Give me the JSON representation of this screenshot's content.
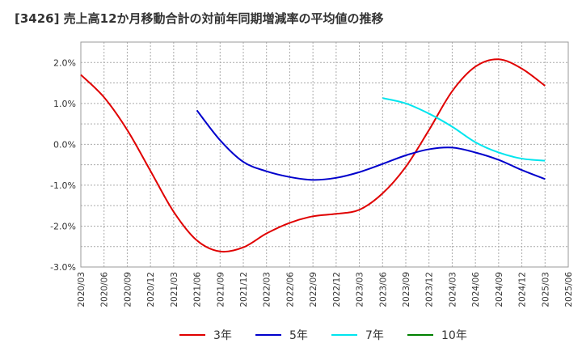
{
  "chart_data": {
    "type": "line",
    "title": "[3426]  売上高12か月移動合計の対前年同期増減率の平均値の推移",
    "xlabel": "",
    "ylabel": "",
    "ylim": [
      -0.03,
      0.025
    ],
    "y_ticks": [
      {
        "value": 0.02,
        "label": "2.0%"
      },
      {
        "value": 0.01,
        "label": "1.0%"
      },
      {
        "value": 0.0,
        "label": "0.0%"
      },
      {
        "value": -0.01,
        "label": "-1.0%"
      },
      {
        "value": -0.02,
        "label": "-2.0%"
      },
      {
        "value": -0.03,
        "label": "-3.0%"
      }
    ],
    "x_ticks": [
      "2020/03",
      "2020/06",
      "2020/09",
      "2020/12",
      "2021/03",
      "2021/06",
      "2021/09",
      "2021/12",
      "2022/03",
      "2022/06",
      "2022/09",
      "2022/12",
      "2023/03",
      "2023/06",
      "2023/09",
      "2023/12",
      "2024/03",
      "2024/06",
      "2024/09",
      "2024/12",
      "2025/03",
      "2025/06"
    ],
    "grid": true,
    "legend_position": "bottom",
    "series": [
      {
        "name": "3年",
        "color": "#e00000",
        "points": [
          [
            "2020/03",
            0.017
          ],
          [
            "2020/06",
            0.0115
          ],
          [
            "2020/09",
            0.0035
          ],
          [
            "2020/12",
            -0.0065
          ],
          [
            "2021/03",
            -0.0165
          ],
          [
            "2021/06",
            -0.0235
          ],
          [
            "2021/09",
            -0.0262
          ],
          [
            "2021/12",
            -0.0252
          ],
          [
            "2022/03",
            -0.0218
          ],
          [
            "2022/06",
            -0.0192
          ],
          [
            "2022/09",
            -0.0176
          ],
          [
            "2022/12",
            -0.017
          ],
          [
            "2023/03",
            -0.016
          ],
          [
            "2023/06",
            -0.012
          ],
          [
            "2023/09",
            -0.0055
          ],
          [
            "2023/12",
            0.0035
          ],
          [
            "2024/03",
            0.013
          ],
          [
            "2024/06",
            0.019
          ],
          [
            "2024/09",
            0.0208
          ],
          [
            "2024/12",
            0.0185
          ],
          [
            "2025/03",
            0.0143
          ]
        ]
      },
      {
        "name": "5年",
        "color": "#0000cc",
        "points": [
          [
            "2021/06",
            0.0083
          ],
          [
            "2021/09",
            0.001
          ],
          [
            "2021/12",
            -0.0043
          ],
          [
            "2022/03",
            -0.0066
          ],
          [
            "2022/06",
            -0.008
          ],
          [
            "2022/09",
            -0.0087
          ],
          [
            "2022/12",
            -0.0082
          ],
          [
            "2023/03",
            -0.0068
          ],
          [
            "2023/06",
            -0.0048
          ],
          [
            "2023/09",
            -0.0027
          ],
          [
            "2023/12",
            -0.0012
          ],
          [
            "2024/03",
            -0.0008
          ],
          [
            "2024/06",
            -0.002
          ],
          [
            "2024/09",
            -0.0038
          ],
          [
            "2024/12",
            -0.0063
          ],
          [
            "2025/03",
            -0.0085
          ]
        ]
      },
      {
        "name": "7年",
        "color": "#00e5ee",
        "points": [
          [
            "2023/06",
            0.0113
          ],
          [
            "2023/09",
            0.01
          ],
          [
            "2023/12",
            0.0075
          ],
          [
            "2024/03",
            0.0043
          ],
          [
            "2024/06",
            0.0005
          ],
          [
            "2024/09",
            -0.002
          ],
          [
            "2024/12",
            -0.0035
          ],
          [
            "2025/03",
            -0.004
          ]
        ]
      },
      {
        "name": "10年",
        "color": "#008000",
        "points": []
      }
    ]
  }
}
